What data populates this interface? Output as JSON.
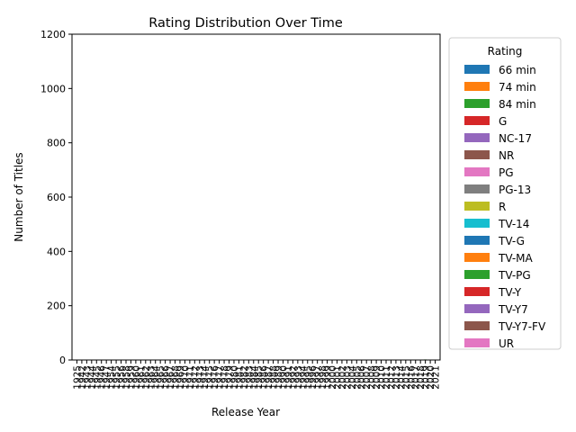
{
  "chart_data": {
    "type": "bar",
    "stacked": true,
    "title": "Rating Distribution Over Time",
    "xlabel": "Release Year",
    "ylabel": "Number of Titles",
    "ylim": [
      0,
      1200
    ],
    "yticks": [
      0,
      200,
      400,
      600,
      800,
      1000,
      1200
    ],
    "grid": false,
    "legend": {
      "title": "Rating",
      "placement": "outside right"
    },
    "categories": [
      "1925",
      "1942",
      "1943",
      "1944",
      "1945",
      "1946",
      "1947",
      "1954",
      "1955",
      "1956",
      "1958",
      "1959",
      "1960",
      "1961",
      "1962",
      "1963",
      "1964",
      "1965",
      "1966",
      "1967",
      "1968",
      "1969",
      "1970",
      "1971",
      "1972",
      "1973",
      "1974",
      "1975",
      "1976",
      "1977",
      "1978",
      "1979",
      "1980",
      "1981",
      "1982",
      "1983",
      "1984",
      "1985",
      "1986",
      "1987",
      "1988",
      "1989",
      "1990",
      "1991",
      "1992",
      "1993",
      "1994",
      "1995",
      "1996",
      "1997",
      "1998",
      "1999",
      "2000",
      "2001",
      "2002",
      "2003",
      "2004",
      "2005",
      "2006",
      "2007",
      "2008",
      "2009",
      "2010",
      "2011",
      "2012",
      "2013",
      "2014",
      "2015",
      "2016",
      "2017",
      "2018",
      "2019",
      "2020",
      "2021"
    ],
    "series": [
      {
        "name": "66 min",
        "color": "#1f77b4",
        "values": [
          0,
          0,
          0,
          0,
          0,
          0,
          0,
          0,
          0,
          0,
          0,
          0,
          0,
          0,
          0,
          0,
          0,
          0,
          0,
          0,
          0,
          0,
          0,
          0,
          0,
          0,
          0,
          0,
          0,
          0,
          0,
          0,
          0,
          0,
          0,
          0,
          0,
          0,
          0,
          0,
          0,
          0,
          0,
          0,
          0,
          0,
          0,
          0,
          0,
          0,
          0,
          0,
          0,
          0,
          0,
          0,
          0,
          0,
          0,
          0,
          0,
          0,
          0,
          0,
          0,
          0,
          0,
          0,
          0,
          0,
          0,
          1,
          0,
          0
        ]
      },
      {
        "name": "74 min",
        "color": "#ff7f0e",
        "values": [
          0,
          0,
          0,
          0,
          0,
          0,
          0,
          0,
          0,
          0,
          0,
          0,
          0,
          0,
          0,
          0,
          0,
          0,
          0,
          0,
          0,
          0,
          0,
          0,
          0,
          0,
          0,
          0,
          0,
          0,
          0,
          0,
          0,
          0,
          0,
          0,
          0,
          0,
          0,
          0,
          0,
          0,
          0,
          0,
          0,
          0,
          0,
          0,
          0,
          0,
          0,
          0,
          0,
          0,
          0,
          0,
          0,
          0,
          0,
          0,
          0,
          0,
          0,
          0,
          0,
          0,
          0,
          0,
          0,
          1,
          0,
          0,
          0,
          0
        ]
      },
      {
        "name": "84 min",
        "color": "#2ca02c",
        "values": [
          0,
          0,
          0,
          0,
          0,
          0,
          0,
          0,
          0,
          0,
          0,
          0,
          0,
          0,
          0,
          0,
          0,
          0,
          0,
          0,
          0,
          0,
          0,
          0,
          0,
          0,
          0,
          0,
          0,
          0,
          0,
          0,
          0,
          0,
          0,
          0,
          0,
          0,
          0,
          0,
          0,
          0,
          0,
          0,
          0,
          0,
          0,
          0,
          0,
          0,
          0,
          0,
          0,
          0,
          0,
          0,
          0,
          0,
          0,
          0,
          0,
          0,
          0,
          0,
          0,
          0,
          0,
          0,
          0,
          0,
          0,
          1,
          0,
          0
        ]
      },
      {
        "name": "G",
        "color": "#d62728",
        "values": [
          0,
          0,
          0,
          0,
          0,
          0,
          0,
          0,
          0,
          0,
          0,
          0,
          0,
          0,
          0,
          0,
          0,
          0,
          0,
          0,
          0,
          0,
          0,
          0,
          0,
          0,
          0,
          0,
          0,
          0,
          0,
          0,
          0,
          0,
          0,
          0,
          0,
          0,
          0,
          0,
          0,
          0,
          0,
          0,
          0,
          0,
          0,
          0,
          0,
          0,
          0,
          0,
          0,
          0,
          0,
          0,
          0,
          0,
          0,
          0,
          0,
          0,
          0,
          0,
          0,
          0,
          0,
          0,
          0,
          0,
          0,
          0,
          0,
          0
        ]
      },
      {
        "name": "NC-17",
        "color": "#9467bd",
        "values": [
          0,
          0,
          0,
          0,
          0,
          0,
          0,
          0,
          0,
          0,
          0,
          0,
          0,
          0,
          0,
          0,
          0,
          0,
          0,
          0,
          0,
          0,
          0,
          0,
          0,
          0,
          0,
          0,
          0,
          0,
          0,
          0,
          0,
          0,
          0,
          0,
          0,
          0,
          0,
          0,
          0,
          0,
          0,
          0,
          0,
          0,
          0,
          0,
          0,
          0,
          0,
          0,
          0,
          0,
          0,
          0,
          0,
          0,
          0,
          0,
          0,
          0,
          0,
          0,
          0,
          0,
          0,
          0,
          0,
          0,
          0,
          0,
          0,
          0
        ]
      },
      {
        "name": "NR",
        "color": "#8c564b",
        "values": [
          0,
          0,
          0,
          0,
          0,
          0,
          0,
          0,
          0,
          0,
          0,
          0,
          0,
          0,
          0,
          0,
          0,
          0,
          0,
          0,
          0,
          0,
          0,
          0,
          0,
          0,
          0,
          0,
          0,
          0,
          0,
          0,
          0,
          0,
          0,
          0,
          0,
          0,
          0,
          0,
          0,
          0,
          0,
          0,
          0,
          0,
          0,
          0,
          0,
          0,
          0,
          0,
          0,
          0,
          0,
          0,
          0,
          0,
          0,
          0,
          0,
          0,
          0,
          0,
          0,
          0,
          0,
          0,
          0,
          0,
          0,
          0,
          0,
          0
        ]
      },
      {
        "name": "PG",
        "color": "#e377c2",
        "values": [
          0,
          0,
          0,
          0,
          0,
          0,
          0,
          0,
          0,
          0,
          0,
          0,
          0,
          0,
          0,
          0,
          0,
          0,
          0,
          0,
          0,
          0,
          0,
          0,
          0,
          0,
          0,
          0,
          0,
          0,
          0,
          0,
          0,
          0,
          0,
          0,
          0,
          0,
          0,
          0,
          0,
          0,
          0,
          0,
          0,
          0,
          0,
          0,
          0,
          0,
          0,
          0,
          0,
          0,
          0,
          0,
          0,
          0,
          0,
          0,
          0,
          0,
          0,
          0,
          0,
          0,
          0,
          0,
          0,
          0,
          0,
          0,
          0,
          0
        ]
      },
      {
        "name": "PG-13",
        "color": "#7f7f7f",
        "values": [
          0,
          0,
          0,
          0,
          0,
          0,
          0,
          0,
          0,
          0,
          0,
          0,
          0,
          0,
          0,
          0,
          0,
          0,
          0,
          0,
          0,
          0,
          0,
          0,
          0,
          0,
          0,
          0,
          0,
          0,
          0,
          0,
          0,
          0,
          0,
          0,
          0,
          0,
          0,
          0,
          0,
          0,
          0,
          0,
          0,
          0,
          0,
          0,
          0,
          0,
          0,
          0,
          0,
          0,
          0,
          0,
          0,
          0,
          0,
          0,
          0,
          0,
          0,
          0,
          0,
          0,
          0,
          0,
          0,
          0,
          0,
          0,
          0,
          0
        ]
      },
      {
        "name": "R",
        "color": "#bcbd22",
        "values": [
          0,
          0,
          0,
          0,
          0,
          0,
          0,
          0,
          0,
          0,
          0,
          0,
          0,
          0,
          0,
          0,
          0,
          0,
          0,
          0,
          0,
          0,
          0,
          0,
          0,
          0,
          0,
          0,
          0,
          0,
          0,
          0,
          0,
          0,
          0,
          0,
          0,
          0,
          0,
          0,
          0,
          0,
          0,
          0,
          0,
          0,
          0,
          0,
          0,
          0,
          0,
          0,
          0,
          0,
          0,
          0,
          0,
          0,
          0,
          0,
          0,
          0,
          0,
          0,
          0,
          0,
          0,
          0,
          0,
          0,
          0,
          0,
          0,
          0
        ]
      },
      {
        "name": "TV-14",
        "color": "#17becf",
        "values": [
          0,
          0,
          0,
          0,
          0,
          0,
          0,
          0,
          0,
          0,
          0,
          0,
          0,
          0,
          0,
          0,
          0,
          0,
          0,
          0,
          0,
          0,
          0,
          0,
          0,
          0,
          0,
          0,
          0,
          0,
          0,
          0,
          0,
          0,
          0,
          0,
          0,
          0,
          0,
          0,
          0,
          0,
          0,
          0,
          0,
          0,
          0,
          0,
          0,
          0,
          0,
          0,
          0,
          0,
          0,
          0,
          0,
          0,
          0,
          0,
          0,
          0,
          0,
          0,
          0,
          0,
          0,
          0,
          0,
          0,
          0,
          0,
          0,
          0
        ]
      },
      {
        "name": "TV-G",
        "color": "#1f77b4",
        "values": [
          0,
          0,
          0,
          0,
          0,
          0,
          0,
          0,
          0,
          0,
          0,
          0,
          0,
          0,
          0,
          0,
          0,
          0,
          0,
          0,
          0,
          0,
          0,
          0,
          0,
          0,
          0,
          0,
          0,
          0,
          0,
          0,
          0,
          0,
          0,
          0,
          0,
          0,
          0,
          0,
          0,
          0,
          0,
          0,
          0,
          0,
          0,
          0,
          0,
          0,
          0,
          0,
          0,
          0,
          0,
          0,
          0,
          0,
          0,
          0,
          0,
          0,
          0,
          0,
          0,
          0,
          0,
          0,
          0,
          0,
          0,
          0,
          0,
          0
        ]
      },
      {
        "name": "TV-MA",
        "color": "#ff7f0e",
        "values": [
          0,
          0,
          0,
          0,
          0,
          0,
          0,
          0,
          0,
          0,
          0,
          0,
          0,
          0,
          0,
          0,
          0,
          0,
          0,
          0,
          0,
          0,
          0,
          0,
          0,
          0,
          0,
          0,
          0,
          0,
          0,
          0,
          0,
          0,
          0,
          0,
          0,
          0,
          0,
          0,
          0,
          0,
          0,
          0,
          0,
          0,
          0,
          0,
          0,
          0,
          0,
          0,
          0,
          0,
          0,
          0,
          0,
          0,
          0,
          0,
          0,
          0,
          0,
          0,
          0,
          0,
          0,
          0,
          0,
          0,
          0,
          0,
          0,
          0
        ]
      },
      {
        "name": "TV-PG",
        "color": "#2ca02c",
        "values": [
          0,
          0,
          0,
          0,
          0,
          0,
          0,
          0,
          0,
          0,
          0,
          0,
          0,
          0,
          0,
          0,
          0,
          0,
          0,
          0,
          0,
          0,
          0,
          0,
          0,
          0,
          0,
          0,
          0,
          0,
          0,
          0,
          0,
          0,
          0,
          0,
          0,
          0,
          0,
          0,
          0,
          0,
          0,
          0,
          0,
          0,
          0,
          0,
          0,
          0,
          0,
          0,
          0,
          0,
          0,
          0,
          0,
          0,
          0,
          0,
          0,
          0,
          0,
          0,
          0,
          0,
          0,
          0,
          0,
          0,
          0,
          0,
          0,
          0
        ]
      },
      {
        "name": "TV-Y",
        "color": "#d62728",
        "values": [
          0,
          0,
          0,
          0,
          0,
          0,
          0,
          0,
          0,
          0,
          0,
          0,
          0,
          0,
          0,
          0,
          0,
          0,
          0,
          0,
          0,
          0,
          0,
          0,
          0,
          0,
          0,
          0,
          0,
          0,
          0,
          0,
          0,
          0,
          0,
          0,
          0,
          0,
          0,
          0,
          0,
          0,
          0,
          0,
          0,
          0,
          0,
          0,
          0,
          0,
          0,
          0,
          0,
          0,
          0,
          0,
          0,
          0,
          0,
          0,
          0,
          0,
          0,
          0,
          0,
          0,
          0,
          0,
          0,
          0,
          0,
          0,
          0,
          0
        ]
      },
      {
        "name": "TV-Y7",
        "color": "#9467bd",
        "values": [
          0,
          0,
          0,
          0,
          0,
          0,
          0,
          0,
          0,
          0,
          0,
          0,
          0,
          0,
          0,
          0,
          0,
          0,
          0,
          0,
          0,
          0,
          0,
          0,
          0,
          0,
          0,
          0,
          0,
          0,
          0,
          0,
          0,
          0,
          0,
          0,
          0,
          0,
          0,
          0,
          0,
          0,
          0,
          0,
          0,
          0,
          0,
          0,
          0,
          0,
          0,
          0,
          0,
          0,
          0,
          0,
          0,
          0,
          0,
          0,
          0,
          0,
          0,
          0,
          0,
          0,
          0,
          0,
          0,
          0,
          0,
          0,
          0,
          0
        ]
      },
      {
        "name": "TV-Y7-FV",
        "color": "#8c564b",
        "values": [
          0,
          0,
          0,
          0,
          0,
          0,
          0,
          0,
          0,
          0,
          0,
          0,
          0,
          0,
          0,
          0,
          0,
          0,
          0,
          0,
          0,
          0,
          0,
          0,
          0,
          0,
          0,
          0,
          0,
          0,
          0,
          0,
          0,
          0,
          0,
          0,
          0,
          0,
          0,
          0,
          0,
          0,
          0,
          0,
          0,
          0,
          0,
          0,
          0,
          0,
          0,
          0,
          0,
          0,
          0,
          0,
          0,
          0,
          0,
          0,
          0,
          0,
          0,
          0,
          0,
          0,
          0,
          0,
          0,
          0,
          0,
          0,
          0,
          0
        ]
      },
      {
        "name": "UR",
        "color": "#e377c2",
        "values": [
          0,
          0,
          0,
          0,
          0,
          0,
          0,
          0,
          0,
          0,
          0,
          0,
          0,
          0,
          0,
          0,
          0,
          0,
          0,
          0,
          0,
          0,
          0,
          0,
          0,
          0,
          0,
          0,
          0,
          0,
          0,
          0,
          0,
          0,
          0,
          0,
          0,
          0,
          0,
          0,
          0,
          0,
          0,
          0,
          0,
          0,
          0,
          0,
          0,
          0,
          0,
          0,
          0,
          0,
          0,
          0,
          0,
          0,
          0,
          0,
          0,
          0,
          0,
          0,
          0,
          0,
          0,
          0,
          0,
          0,
          0,
          0,
          0,
          0
        ]
      }
    ]
  }
}
